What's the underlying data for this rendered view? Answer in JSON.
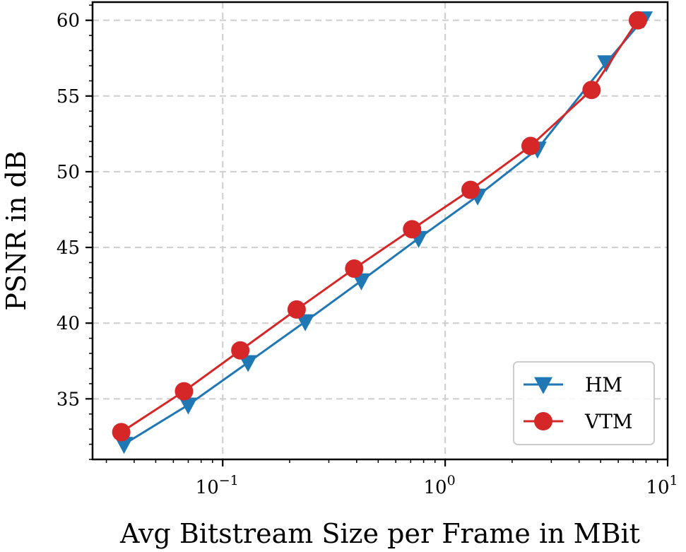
{
  "chart_data": {
    "type": "line",
    "xscale": "log",
    "xlabel": "Avg Bitstream Size per Frame in MBit",
    "ylabel": "PSNR in dB",
    "xlim": [
      0.026,
      10
    ],
    "ylim": [
      31,
      61.2
    ],
    "x_ticks": [
      {
        "value": 0.1,
        "base": "10",
        "exp": "−1"
      },
      {
        "value": 1,
        "base": "10",
        "exp": "0"
      },
      {
        "value": 10,
        "base": "10",
        "exp": "1"
      }
    ],
    "y_ticks": [
      {
        "value": 35,
        "label": "35"
      },
      {
        "value": 40,
        "label": "40"
      },
      {
        "value": 45,
        "label": "45"
      },
      {
        "value": 50,
        "label": "50"
      },
      {
        "value": 55,
        "label": "55"
      },
      {
        "value": 60,
        "label": "60"
      }
    ],
    "grid": true,
    "legend_position": "lower-right",
    "series": [
      {
        "name": "HM",
        "color": "#1f77b4",
        "marker": "triangle-down",
        "x": [
          0.036,
          0.07,
          0.13,
          0.235,
          0.42,
          0.76,
          1.4,
          2.6,
          5.3,
          7.8
        ],
        "y": [
          32.0,
          34.6,
          37.4,
          40.1,
          42.8,
          45.6,
          48.4,
          51.5,
          57.2,
          60.1
        ]
      },
      {
        "name": "VTM",
        "color": "#d62728",
        "marker": "circle",
        "x": [
          0.035,
          0.067,
          0.12,
          0.215,
          0.39,
          0.71,
          1.3,
          2.42,
          4.55,
          7.35
        ],
        "y": [
          32.8,
          35.5,
          38.2,
          40.9,
          43.6,
          46.2,
          48.8,
          51.7,
          55.4,
          60.0
        ]
      }
    ]
  }
}
